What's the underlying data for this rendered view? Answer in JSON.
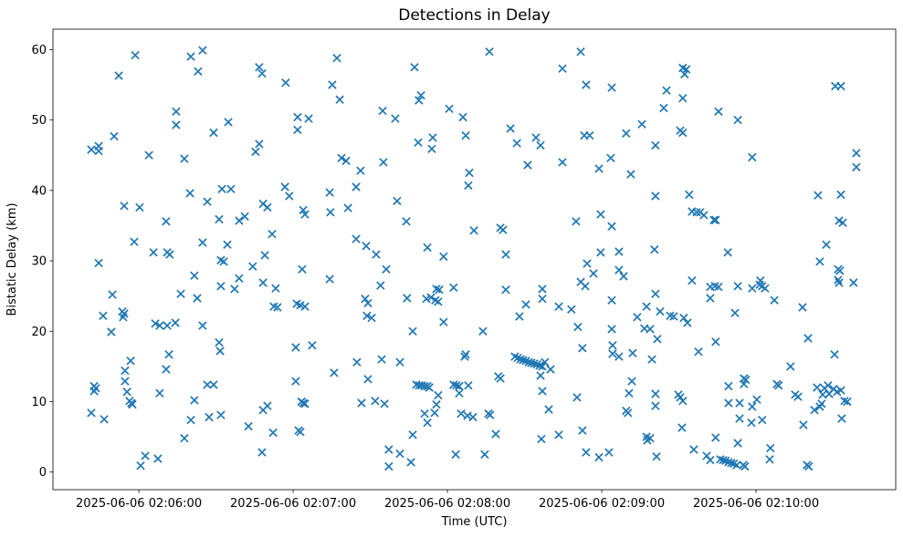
{
  "figure": {
    "background": "#ffffff"
  },
  "chart_data": {
    "type": "scatter",
    "title": "Detections in Delay",
    "xlabel": "Time (UTC)",
    "ylabel": "Bistatic Delay (km)",
    "marker": "x",
    "marker_color": "#1f77b4",
    "axes_color": "#000000",
    "grid": false,
    "legend": null,
    "x_unit": "seconds after 2025-06-06 02:05:00 UTC",
    "xlim": [
      26.6,
      354.3
    ],
    "ylim": [
      -2.5,
      62.9
    ],
    "x_ticks": [
      {
        "value": 60,
        "label": "2025-06-06 02:06:00"
      },
      {
        "value": 120,
        "label": "2025-06-06 02:07:00"
      },
      {
        "value": 180,
        "label": "2025-06-06 02:08:00"
      },
      {
        "value": 240,
        "label": "2025-06-06 02:09:00"
      },
      {
        "value": 300,
        "label": "2025-06-06 02:10:00"
      }
    ],
    "y_ticks": [
      {
        "value": 0,
        "label": "0"
      },
      {
        "value": 10,
        "label": "10"
      },
      {
        "value": 20,
        "label": "20"
      },
      {
        "value": 30,
        "label": "30"
      },
      {
        "value": 40,
        "label": "40"
      },
      {
        "value": 50,
        "label": "50"
      },
      {
        "value": 60,
        "label": "60"
      }
    ],
    "points": [
      [
        58.6,
        59.2
      ],
      [
        80.2,
        59.0
      ],
      [
        84.8,
        59.9
      ],
      [
        83.0,
        56.9
      ],
      [
        106.8,
        57.5
      ],
      [
        107.9,
        56.6
      ],
      [
        52.2,
        56.3
      ],
      [
        74.5,
        51.2
      ],
      [
        74.5,
        49.3
      ],
      [
        94.8,
        49.7
      ],
      [
        89.1,
        48.2
      ],
      [
        50.4,
        47.7
      ],
      [
        44.4,
        46.3
      ],
      [
        44.4,
        45.6
      ],
      [
        41.5,
        45.8
      ],
      [
        63.9,
        45.0
      ],
      [
        77.7,
        44.5
      ],
      [
        105.4,
        45.5
      ],
      [
        106.8,
        46.6
      ],
      [
        137.0,
        58.8
      ],
      [
        117.1,
        55.3
      ],
      [
        135.2,
        55.0
      ],
      [
        138.1,
        52.9
      ],
      [
        167.2,
        57.5
      ],
      [
        169.7,
        53.5
      ],
      [
        168.9,
        52.8
      ],
      [
        154.8,
        51.3
      ],
      [
        159.7,
        50.2
      ],
      [
        180.7,
        51.6
      ],
      [
        186.0,
        50.4
      ],
      [
        121.7,
        50.4
      ],
      [
        126.0,
        50.2
      ],
      [
        121.7,
        48.6
      ],
      [
        168.6,
        46.8
      ],
      [
        174.3,
        47.5
      ],
      [
        173.9,
        45.9
      ],
      [
        187.1,
        47.8
      ],
      [
        138.8,
        44.6
      ],
      [
        140.6,
        44.2
      ],
      [
        146.2,
        42.8
      ],
      [
        155.1,
        44.0
      ],
      [
        188.5,
        42.5
      ],
      [
        196.3,
        59.7
      ],
      [
        231.8,
        59.7
      ],
      [
        224.7,
        57.3
      ],
      [
        233.9,
        55.0
      ],
      [
        243.9,
        54.6
      ],
      [
        265.2,
        54.2
      ],
      [
        264.1,
        51.7
      ],
      [
        204.5,
        48.8
      ],
      [
        207.0,
        46.7
      ],
      [
        214.4,
        47.5
      ],
      [
        216.2,
        46.4
      ],
      [
        233.2,
        47.8
      ],
      [
        235.3,
        47.8
      ],
      [
        249.5,
        48.1
      ],
      [
        255.6,
        49.4
      ],
      [
        260.9,
        46.4
      ],
      [
        211.2,
        43.6
      ],
      [
        224.7,
        44.0
      ],
      [
        238.9,
        43.1
      ],
      [
        243.5,
        44.6
      ],
      [
        251.3,
        42.3
      ],
      [
        271.5,
        57.4
      ],
      [
        272.9,
        57.2
      ],
      [
        272.2,
        56.5
      ],
      [
        330.8,
        54.8
      ],
      [
        333.0,
        54.8
      ],
      [
        271.5,
        53.1
      ],
      [
        285.4,
        51.2
      ],
      [
        292.9,
        50.0
      ],
      [
        270.5,
        48.5
      ],
      [
        271.5,
        48.2
      ],
      [
        298.5,
        44.7
      ],
      [
        339.0,
        45.3
      ],
      [
        339.0,
        43.3
      ],
      [
        79.9,
        39.6
      ],
      [
        92.3,
        40.2
      ],
      [
        95.8,
        40.2
      ],
      [
        86.6,
        38.4
      ],
      [
        54.3,
        37.8
      ],
      [
        60.3,
        37.6
      ],
      [
        70.6,
        35.6
      ],
      [
        91.2,
        35.9
      ],
      [
        99.0,
        35.7
      ],
      [
        101.2,
        36.3
      ],
      [
        108.3,
        38.1
      ],
      [
        58.2,
        32.7
      ],
      [
        84.8,
        32.6
      ],
      [
        94.4,
        32.3
      ],
      [
        65.7,
        31.2
      ],
      [
        71.0,
        31.2
      ],
      [
        72.0,
        30.9
      ],
      [
        91.9,
        30.1
      ],
      [
        93.0,
        29.9
      ],
      [
        44.4,
        29.7
      ],
      [
        104.3,
        29.2
      ],
      [
        108.3,
        26.9
      ],
      [
        81.6,
        27.9
      ],
      [
        99.0,
        27.5
      ],
      [
        91.9,
        26.4
      ],
      [
        97.2,
        26.0
      ],
      [
        49.7,
        25.2
      ],
      [
        76.3,
        25.3
      ],
      [
        82.7,
        24.7
      ],
      [
        46.1,
        22.2
      ],
      [
        53.6,
        22.8
      ],
      [
        54.3,
        22.5
      ],
      [
        53.9,
        22.0
      ],
      [
        66.4,
        21.1
      ],
      [
        68.1,
        20.8
      ],
      [
        71.0,
        20.8
      ],
      [
        74.2,
        21.2
      ],
      [
        84.8,
        20.8
      ],
      [
        49.3,
        19.9
      ],
      [
        116.8,
        40.5
      ],
      [
        144.5,
        40.5
      ],
      [
        118.5,
        39.2
      ],
      [
        134.2,
        39.7
      ],
      [
        110.0,
        37.6
      ],
      [
        123.9,
        37.2
      ],
      [
        124.6,
        36.6
      ],
      [
        134.5,
        36.9
      ],
      [
        141.3,
        37.5
      ],
      [
        160.4,
        38.5
      ],
      [
        164.0,
        35.6
      ],
      [
        111.8,
        33.8
      ],
      [
        144.5,
        33.1
      ],
      [
        148.4,
        32.1
      ],
      [
        152.3,
        30.9
      ],
      [
        109.0,
        30.8
      ],
      [
        172.2,
        31.9
      ],
      [
        178.5,
        30.6
      ],
      [
        123.5,
        28.8
      ],
      [
        156.2,
        28.8
      ],
      [
        134.2,
        27.4
      ],
      [
        113.2,
        26.1
      ],
      [
        154.0,
        26.5
      ],
      [
        175.7,
        26.0
      ],
      [
        176.8,
        25.9
      ],
      [
        182.4,
        26.2
      ],
      [
        148.0,
        24.6
      ],
      [
        149.1,
        24.0
      ],
      [
        164.3,
        24.7
      ],
      [
        171.8,
        24.6
      ],
      [
        173.6,
        24.8
      ],
      [
        175.3,
        24.4
      ],
      [
        176.4,
        24.2
      ],
      [
        112.5,
        23.5
      ],
      [
        113.9,
        23.4
      ],
      [
        121.4,
        23.9
      ],
      [
        122.8,
        23.7
      ],
      [
        124.6,
        23.5
      ],
      [
        148.7,
        22.2
      ],
      [
        150.5,
        21.9
      ],
      [
        178.5,
        21.3
      ],
      [
        166.5,
        20.0
      ],
      [
        188.1,
        40.7
      ],
      [
        260.9,
        39.2
      ],
      [
        239.6,
        36.6
      ],
      [
        230.0,
        35.6
      ],
      [
        243.9,
        34.9
      ],
      [
        190.3,
        34.3
      ],
      [
        200.6,
        34.7
      ],
      [
        201.6,
        34.4
      ],
      [
        202.7,
        30.9
      ],
      [
        239.6,
        31.2
      ],
      [
        246.7,
        31.3
      ],
      [
        260.5,
        31.6
      ],
      [
        234.3,
        29.6
      ],
      [
        236.8,
        28.2
      ],
      [
        246.7,
        28.7
      ],
      [
        248.5,
        27.8
      ],
      [
        231.8,
        27.0
      ],
      [
        233.6,
        26.4
      ],
      [
        202.7,
        25.9
      ],
      [
        216.9,
        26.0
      ],
      [
        216.9,
        24.6
      ],
      [
        210.5,
        23.8
      ],
      [
        223.3,
        23.5
      ],
      [
        228.2,
        23.1
      ],
      [
        243.9,
        24.4
      ],
      [
        260.9,
        25.3
      ],
      [
        208.0,
        22.1
      ],
      [
        257.4,
        23.5
      ],
      [
        262.7,
        22.8
      ],
      [
        266.6,
        22.2
      ],
      [
        253.8,
        22.0
      ],
      [
        193.8,
        20.0
      ],
      [
        230.7,
        20.6
      ],
      [
        243.9,
        20.3
      ],
      [
        256.6,
        20.4
      ],
      [
        258.8,
        20.3
      ],
      [
        274.0,
        39.4
      ],
      [
        324.1,
        39.3
      ],
      [
        333.0,
        39.4
      ],
      [
        275.1,
        37.0
      ],
      [
        276.9,
        36.9
      ],
      [
        278.3,
        36.9
      ],
      [
        279.7,
        36.5
      ],
      [
        283.6,
        35.8
      ],
      [
        284.3,
        35.8
      ],
      [
        332.3,
        35.7
      ],
      [
        333.7,
        35.4
      ],
      [
        327.3,
        32.3
      ],
      [
        289.0,
        31.2
      ],
      [
        324.8,
        29.9
      ],
      [
        331.9,
        28.8
      ],
      [
        332.6,
        28.6
      ],
      [
        331.9,
        27.3
      ],
      [
        332.3,
        26.9
      ],
      [
        275.1,
        27.2
      ],
      [
        337.9,
        26.9
      ],
      [
        282.2,
        26.3
      ],
      [
        284.0,
        26.4
      ],
      [
        285.4,
        26.3
      ],
      [
        292.9,
        26.4
      ],
      [
        298.5,
        26.1
      ],
      [
        301.7,
        27.2
      ],
      [
        301.4,
        26.6
      ],
      [
        302.4,
        26.4
      ],
      [
        303.5,
        26.1
      ],
      [
        282.2,
        24.7
      ],
      [
        307.1,
        24.4
      ],
      [
        318.1,
        23.4
      ],
      [
        291.8,
        22.6
      ],
      [
        268.0,
        22.1
      ],
      [
        271.9,
        21.9
      ],
      [
        273.3,
        21.2
      ],
      [
        91.2,
        18.4
      ],
      [
        91.6,
        17.2
      ],
      [
        71.7,
        16.7
      ],
      [
        56.8,
        15.8
      ],
      [
        70.6,
        14.6
      ],
      [
        54.6,
        14.4
      ],
      [
        54.6,
        12.9
      ],
      [
        42.6,
        12.2
      ],
      [
        43.3,
        11.9
      ],
      [
        42.6,
        11.5
      ],
      [
        55.4,
        11.4
      ],
      [
        68.1,
        11.2
      ],
      [
        86.6,
        12.4
      ],
      [
        89.1,
        12.4
      ],
      [
        56.4,
        10.1
      ],
      [
        57.1,
        9.8
      ],
      [
        57.5,
        9.6
      ],
      [
        81.6,
        10.2
      ],
      [
        41.5,
        8.4
      ],
      [
        46.5,
        7.5
      ],
      [
        80.2,
        7.4
      ],
      [
        87.3,
        7.8
      ],
      [
        91.9,
        8.1
      ],
      [
        102.6,
        6.5
      ],
      [
        108.3,
        8.8
      ],
      [
        77.7,
        4.8
      ],
      [
        107.9,
        2.8
      ],
      [
        62.5,
        2.3
      ],
      [
        67.4,
        1.9
      ],
      [
        60.7,
        0.9
      ],
      [
        121.0,
        17.7
      ],
      [
        127.4,
        18.0
      ],
      [
        144.8,
        15.6
      ],
      [
        154.4,
        16.0
      ],
      [
        161.5,
        15.6
      ],
      [
        186.7,
        16.4
      ],
      [
        135.9,
        14.1
      ],
      [
        121.0,
        12.9
      ],
      [
        149.1,
        13.2
      ],
      [
        167.9,
        12.4
      ],
      [
        169.0,
        12.3
      ],
      [
        170.0,
        12.3
      ],
      [
        171.1,
        12.2
      ],
      [
        172.2,
        12.2
      ],
      [
        172.9,
        12.0
      ],
      [
        182.4,
        12.4
      ],
      [
        183.5,
        12.3
      ],
      [
        184.6,
        12.2
      ],
      [
        184.6,
        11.2
      ],
      [
        188.1,
        12.3
      ],
      [
        176.4,
        10.9
      ],
      [
        175.7,
        9.6
      ],
      [
        110.0,
        9.4
      ],
      [
        123.2,
        10.0
      ],
      [
        123.9,
        9.8
      ],
      [
        124.6,
        9.7
      ],
      [
        146.6,
        9.8
      ],
      [
        151.9,
        10.1
      ],
      [
        155.5,
        9.7
      ],
      [
        171.1,
        8.3
      ],
      [
        175.0,
        8.4
      ],
      [
        172.2,
        7.0
      ],
      [
        185.3,
        8.3
      ],
      [
        187.8,
        8.0
      ],
      [
        112.2,
        5.6
      ],
      [
        122.1,
        5.9
      ],
      [
        122.8,
        5.7
      ],
      [
        166.5,
        5.3
      ],
      [
        157.2,
        3.2
      ],
      [
        161.5,
        2.6
      ],
      [
        165.8,
        1.4
      ],
      [
        183.2,
        2.5
      ],
      [
        157.2,
        0.8
      ],
      [
        261.6,
        18.9
      ],
      [
        232.5,
        17.6
      ],
      [
        244.2,
        18.0
      ],
      [
        244.2,
        16.8
      ],
      [
        246.7,
        16.4
      ],
      [
        252.0,
        16.9
      ],
      [
        259.5,
        16.0
      ],
      [
        187.1,
        16.7
      ],
      [
        206.2,
        16.4
      ],
      [
        207.3,
        16.2
      ],
      [
        208.4,
        16.0
      ],
      [
        209.4,
        15.9
      ],
      [
        210.5,
        15.8
      ],
      [
        211.6,
        15.6
      ],
      [
        212.6,
        15.5
      ],
      [
        213.7,
        15.4
      ],
      [
        214.8,
        15.3
      ],
      [
        215.8,
        15.1
      ],
      [
        216.9,
        15.0
      ],
      [
        217.9,
        15.6
      ],
      [
        220.1,
        14.6
      ],
      [
        216.2,
        13.7
      ],
      [
        199.8,
        13.6
      ],
      [
        200.6,
        13.3
      ],
      [
        251.7,
        12.9
      ],
      [
        216.9,
        11.5
      ],
      [
        250.6,
        11.2
      ],
      [
        260.9,
        11.1
      ],
      [
        230.4,
        10.6
      ],
      [
        260.9,
        9.4
      ],
      [
        219.4,
        8.9
      ],
      [
        249.5,
        8.7
      ],
      [
        250.2,
        8.4
      ],
      [
        189.9,
        7.8
      ],
      [
        195.9,
        8.3
      ],
      [
        196.6,
        8.1
      ],
      [
        198.8,
        5.4
      ],
      [
        216.5,
        4.7
      ],
      [
        223.3,
        5.3
      ],
      [
        232.5,
        5.9
      ],
      [
        257.4,
        5.0
      ],
      [
        258.8,
        4.8
      ],
      [
        257.7,
        4.5
      ],
      [
        233.9,
        2.8
      ],
      [
        238.9,
        2.1
      ],
      [
        242.8,
        2.8
      ],
      [
        194.5,
        2.5
      ],
      [
        261.3,
        2.2
      ],
      [
        320.2,
        19.0
      ],
      [
        284.3,
        18.5
      ],
      [
        277.6,
        17.1
      ],
      [
        330.5,
        16.7
      ],
      [
        313.4,
        15.0
      ],
      [
        295.3,
        13.3
      ],
      [
        296.0,
        13.1
      ],
      [
        295.3,
        12.5
      ],
      [
        289.3,
        12.2
      ],
      [
        308.1,
        12.5
      ],
      [
        308.8,
        12.3
      ],
      [
        315.2,
        11.0
      ],
      [
        316.3,
        10.7
      ],
      [
        323.7,
        12.0
      ],
      [
        325.9,
        11.0
      ],
      [
        326.6,
        11.9
      ],
      [
        328.0,
        12.3
      ],
      [
        328.4,
        11.1
      ],
      [
        330.1,
        11.8
      ],
      [
        331.5,
        11.4
      ],
      [
        333.0,
        11.6
      ],
      [
        325.5,
        9.7
      ],
      [
        334.4,
        10.1
      ],
      [
        269.8,
        11.0
      ],
      [
        270.5,
        10.6
      ],
      [
        271.5,
        10.1
      ],
      [
        289.3,
        9.8
      ],
      [
        293.6,
        9.8
      ],
      [
        298.5,
        9.3
      ],
      [
        300.3,
        10.3
      ],
      [
        335.5,
        10.0
      ],
      [
        322.7,
        8.8
      ],
      [
        324.8,
        9.3
      ],
      [
        293.6,
        7.6
      ],
      [
        298.2,
        7.0
      ],
      [
        302.4,
        7.4
      ],
      [
        333.3,
        7.6
      ],
      [
        318.4,
        6.7
      ],
      [
        271.2,
        6.3
      ],
      [
        284.3,
        4.9
      ],
      [
        292.9,
        4.1
      ],
      [
        275.8,
        3.2
      ],
      [
        280.8,
        2.3
      ],
      [
        282.2,
        1.7
      ],
      [
        286.1,
        1.8
      ],
      [
        287.2,
        1.7
      ],
      [
        288.2,
        1.6
      ],
      [
        289.3,
        1.4
      ],
      [
        290.4,
        1.3
      ],
      [
        291.4,
        1.2
      ],
      [
        292.5,
        1.0
      ],
      [
        295.0,
        1.0
      ],
      [
        295.7,
        0.8
      ],
      [
        305.6,
        3.4
      ],
      [
        305.3,
        1.8
      ],
      [
        319.8,
        1.0
      ],
      [
        320.5,
        0.8
      ]
    ]
  }
}
